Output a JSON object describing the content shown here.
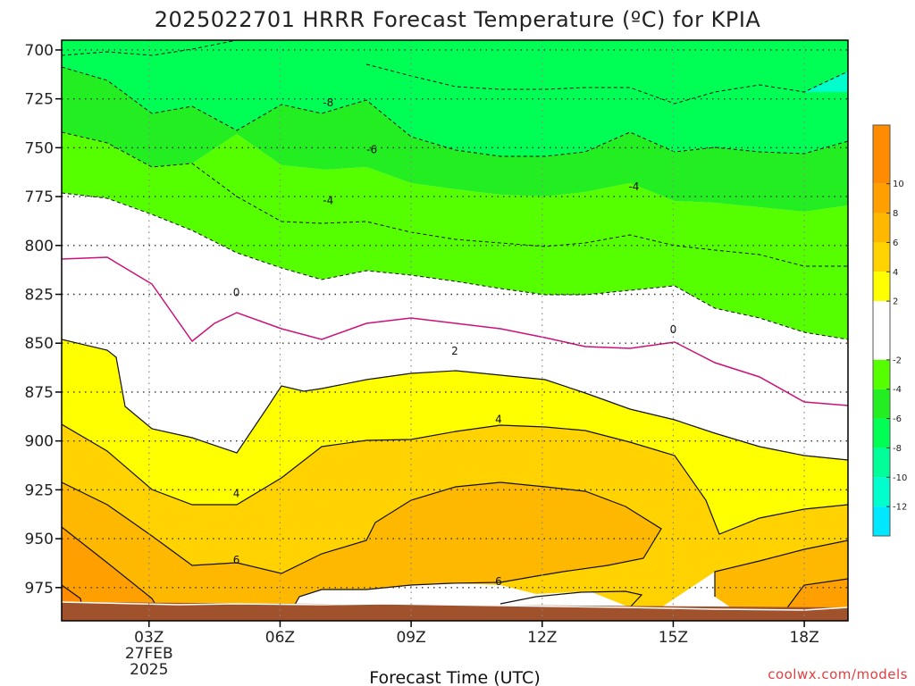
{
  "chart_data": {
    "type": "contour",
    "title": "2025022701 HRRR Forecast Temperature (ºC) for KPIA",
    "xlabel": "Forecast Time (UTC)",
    "ylabel": "",
    "credit": "coolwx.com/models",
    "y_axis": {
      "label": "",
      "ticks": [
        700,
        725,
        750,
        775,
        800,
        825,
        850,
        875,
        900,
        925,
        950,
        975
      ],
      "ylim": [
        695,
        992
      ],
      "inverted": true
    },
    "x_axis": {
      "ticks": [
        {
          "hour": 3,
          "label": "03Z",
          "date_line1": "27FEB",
          "date_line2": "2025"
        },
        {
          "hour": 6,
          "label": "06Z"
        },
        {
          "hour": 9,
          "label": "09Z"
        },
        {
          "hour": 12,
          "label": "12Z"
        },
        {
          "hour": 15,
          "label": "15Z"
        },
        {
          "hour": 18,
          "label": "18Z"
        }
      ],
      "xlim": [
        1,
        19
      ]
    },
    "grid": true,
    "colorbar": {
      "placement": "right",
      "ticks": [
        10,
        8,
        6,
        4,
        2,
        -2,
        -4,
        -6,
        -8,
        -10,
        -12
      ],
      "bands": [
        {
          "range": [
            10,
            12
          ],
          "color": "#ff8c00"
        },
        {
          "range": [
            8,
            10
          ],
          "color": "#ffa000"
        },
        {
          "range": [
            6,
            8
          ],
          "color": "#ffb800"
        },
        {
          "range": [
            4,
            6
          ],
          "color": "#ffd200"
        },
        {
          "range": [
            2,
            4
          ],
          "color": "#ffff00"
        },
        {
          "range": [
            -2,
            2
          ],
          "color": "#ffffff"
        },
        {
          "range": [
            -4,
            -2
          ],
          "color": "#55ff00"
        },
        {
          "range": [
            -6,
            -4
          ],
          "color": "#22ee22"
        },
        {
          "range": [
            -8,
            -6
          ],
          "color": "#00ff55"
        },
        {
          "range": [
            -10,
            -8
          ],
          "color": "#00ff99"
        },
        {
          "range": [
            -12,
            -10
          ],
          "color": "#00ffcc"
        },
        {
          "range": [
            -14,
            -12
          ],
          "color": "#00e8ff"
        }
      ]
    },
    "contour_labels": [
      {
        "text": "-8",
        "hour": 7.1,
        "p": 727
      },
      {
        "text": "-6",
        "hour": 8.1,
        "p": 751
      },
      {
        "text": "-4",
        "hour": 7.1,
        "p": 777
      },
      {
        "text": "-4",
        "hour": 14.1,
        "p": 770
      },
      {
        "text": "0",
        "hour": 5.0,
        "p": 824
      },
      {
        "text": "0",
        "hour": 15.0,
        "p": 843
      },
      {
        "text": "2",
        "hour": 10.0,
        "p": 854
      },
      {
        "text": "4",
        "hour": 11.0,
        "p": 889
      },
      {
        "text": "4",
        "hour": 5.0,
        "p": 927
      },
      {
        "text": "6",
        "hour": 5.0,
        "p": 961
      },
      {
        "text": "6",
        "hour": 11.0,
        "p": 972
      }
    ]
  }
}
